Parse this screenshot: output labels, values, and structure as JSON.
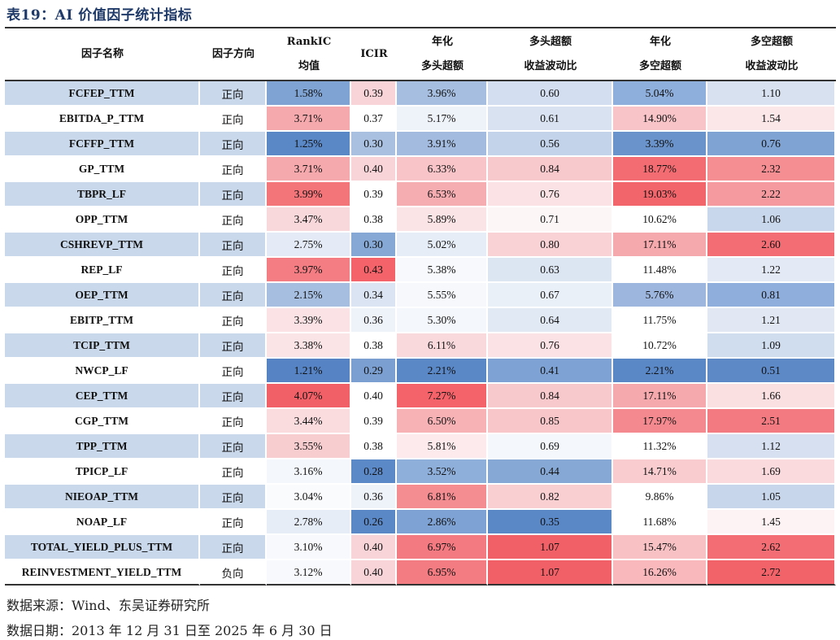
{
  "title": "表19：AI 价值因子统计指标",
  "headers": {
    "factor": "因子名称",
    "direction": "因子方向",
    "rankic_1": "RankIC",
    "rankic_2": "均值",
    "icir": "ICIR",
    "long_ann_1": "年化",
    "long_ann_2": "多头超额",
    "long_ratio_1": "多头超额",
    "long_ratio_2": "收益波动比",
    "ls_ann_1": "年化",
    "ls_ann_2": "多空超额",
    "ls_ratio_1": "多空超额",
    "ls_ratio_2": "收益波动比"
  },
  "rows": [
    {
      "name": "FCFEP_TTM",
      "dir": "正向",
      "rankic": "1.58%",
      "icir": "0.39",
      "long_ann": "3.96%",
      "long_ratio": "0.60",
      "ls_ann": "5.04%",
      "ls_ratio": "1.10",
      "colors": {
        "rankic": "#7fa3d3",
        "icir": "#f8d3d7",
        "long_ann": "#a6bee0",
        "long_ratio": "#d3def0",
        "ls_ann": "#8eaedb",
        "ls_ratio": "#d7e1f0"
      }
    },
    {
      "name": "EBITDA_P_TTM",
      "dir": "正向",
      "rankic": "3.71%",
      "icir": "0.37",
      "long_ann": "5.17%",
      "long_ratio": "0.61",
      "ls_ann": "14.90%",
      "ls_ratio": "1.54",
      "colors": {
        "rankic": "#f6a9ad",
        "icir": "#ffffff",
        "long_ann": "#eef2f9",
        "long_ratio": "#d8e2f1",
        "ls_ann": "#f8c4c8",
        "ls_ratio": "#fbe6e8"
      }
    },
    {
      "name": "FCFFP_TTM",
      "dir": "正向",
      "rankic": "1.25%",
      "icir": "0.30",
      "long_ann": "3.91%",
      "long_ratio": "0.56",
      "ls_ann": "3.39%",
      "ls_ratio": "0.76",
      "colors": {
        "rankic": "#5a87c6",
        "icir": "#a9c0e1",
        "long_ann": "#a3bbdf",
        "long_ratio": "#c3d3ea",
        "ls_ann": "#6a93cb",
        "ls_ratio": "#7fa3d3"
      }
    },
    {
      "name": "GP_TTM",
      "dir": "正向",
      "rankic": "3.71%",
      "icir": "0.40",
      "long_ann": "6.33%",
      "long_ratio": "0.84",
      "ls_ann": "18.77%",
      "ls_ratio": "2.32",
      "colors": {
        "rankic": "#f6a9ad",
        "icir": "#f8d3d7",
        "long_ann": "#f8c4c8",
        "long_ratio": "#f8c9cc",
        "ls_ann": "#f36c72",
        "ls_ratio": "#f48e93"
      }
    },
    {
      "name": "TBPR_LF",
      "dir": "正向",
      "rankic": "3.99%",
      "icir": "0.39",
      "long_ann": "6.53%",
      "long_ratio": "0.76",
      "ls_ann": "19.03%",
      "ls_ratio": "2.22",
      "colors": {
        "rankic": "#f37479",
        "icir": "#ffffff",
        "long_ann": "#f6adb1",
        "long_ratio": "#fbe2e4",
        "ls_ann": "#f2656b",
        "ls_ratio": "#f59a9f"
      }
    },
    {
      "name": "OPP_TTM",
      "dir": "正向",
      "rankic": "3.47%",
      "icir": "0.38",
      "long_ann": "5.89%",
      "long_ratio": "0.71",
      "ls_ann": "10.62%",
      "ls_ratio": "1.06",
      "colors": {
        "rankic": "#f9d8db",
        "icir": "#ffffff",
        "long_ann": "#fbe4e6",
        "long_ratio": "#fdf6f7",
        "ls_ann": "#ffffff",
        "ls_ratio": "#c9d7ec"
      }
    },
    {
      "name": "CSHREVP_TTM",
      "dir": "正向",
      "rankic": "2.75%",
      "icir": "0.30",
      "long_ann": "5.02%",
      "long_ratio": "0.80",
      "ls_ann": "17.11%",
      "ls_ratio": "2.60",
      "colors": {
        "rankic": "#e4ebf6",
        "icir": "#86a8d5",
        "long_ann": "#e6edf7",
        "long_ratio": "#f9d2d5",
        "ls_ann": "#f6a9ad",
        "ls_ratio": "#f36e74"
      }
    },
    {
      "name": "REP_LF",
      "dir": "正向",
      "rankic": "3.97%",
      "icir": "0.43",
      "long_ann": "5.38%",
      "long_ratio": "0.63",
      "ls_ann": "11.48%",
      "ls_ratio": "1.22",
      "colors": {
        "rankic": "#f37d82",
        "icir": "#f36369",
        "long_ann": "#f7f9fc",
        "long_ratio": "#dce5f2",
        "ls_ann": "#ffffff",
        "ls_ratio": "#e3eaf5"
      }
    },
    {
      "name": "OEP_TTM",
      "dir": "正向",
      "rankic": "2.15%",
      "icir": "0.34",
      "long_ann": "5.55%",
      "long_ratio": "0.67",
      "ls_ann": "5.76%",
      "ls_ratio": "0.81",
      "colors": {
        "rankic": "#a6bee0",
        "icir": "#dbe4f2",
        "long_ann": "#f6f8fc",
        "long_ratio": "#eaf0f8",
        "ls_ann": "#9db6dd",
        "ls_ratio": "#8faedb"
      }
    },
    {
      "name": "EBITP_TTM",
      "dir": "正向",
      "rankic": "3.39%",
      "icir": "0.36",
      "long_ann": "5.30%",
      "long_ratio": "0.64",
      "ls_ann": "11.75%",
      "ls_ratio": "1.21",
      "colors": {
        "rankic": "#fbe3e5",
        "icir": "#eef2f9",
        "long_ann": "#f4f7fb",
        "long_ratio": "#e1e9f4",
        "ls_ann": "#ffffff",
        "ls_ratio": "#e1e8f4"
      }
    },
    {
      "name": "TCIP_TTM",
      "dir": "正向",
      "rankic": "3.38%",
      "icir": "0.38",
      "long_ann": "6.11%",
      "long_ratio": "0.76",
      "ls_ann": "10.72%",
      "ls_ratio": "1.09",
      "colors": {
        "rankic": "#fbe4e6",
        "icir": "#ffffff",
        "long_ann": "#fad9dc",
        "long_ratio": "#fbe2e4",
        "ls_ann": "#ffffff",
        "ls_ratio": "#d0ddef"
      }
    },
    {
      "name": "NWCP_LF",
      "dir": "正向",
      "rankic": "1.21%",
      "icir": "0.29",
      "long_ann": "2.21%",
      "long_ratio": "0.41",
      "ls_ann": "2.21%",
      "ls_ratio": "0.51",
      "colors": {
        "rankic": "#5583c4",
        "icir": "#7c9fd1",
        "long_ann": "#5a87c6",
        "long_ratio": "#7ea2d3",
        "ls_ann": "#5a87c6",
        "ls_ratio": "#5e89c7"
      }
    },
    {
      "name": "CEP_TTM",
      "dir": "正向",
      "rankic": "4.07%",
      "icir": "0.40",
      "long_ann": "7.27%",
      "long_ratio": "0.84",
      "ls_ann": "17.11%",
      "ls_ratio": "1.66",
      "colors": {
        "rankic": "#f26067",
        "icir": "#ffffff",
        "long_ann": "#f36369",
        "long_ratio": "#f8c9cc",
        "ls_ann": "#f6a9ad",
        "ls_ratio": "#fbe0e2"
      }
    },
    {
      "name": "CGP_TTM",
      "dir": "正向",
      "rankic": "3.44%",
      "icir": "0.39",
      "long_ann": "6.50%",
      "long_ratio": "0.85",
      "ls_ann": "17.97%",
      "ls_ratio": "2.51",
      "colors": {
        "rankic": "#fadbde",
        "icir": "#ffffff",
        "long_ann": "#f7b2b6",
        "long_ratio": "#f8c6c9",
        "ls_ann": "#f48a8f",
        "ls_ratio": "#f37a80"
      }
    },
    {
      "name": "TPP_TTM",
      "dir": "正向",
      "rankic": "3.55%",
      "icir": "0.38",
      "long_ann": "5.81%",
      "long_ratio": "0.69",
      "ls_ann": "11.32%",
      "ls_ratio": "1.12",
      "colors": {
        "rankic": "#f8cdd0",
        "icir": "#ffffff",
        "long_ann": "#fceaec",
        "long_ratio": "#f4f7fb",
        "ls_ann": "#ffffff",
        "ls_ratio": "#d6e0f0"
      }
    },
    {
      "name": "TPICP_LF",
      "dir": "正向",
      "rankic": "3.16%",
      "icir": "0.28",
      "long_ann": "3.52%",
      "long_ratio": "0.44",
      "ls_ann": "14.71%",
      "ls_ratio": "1.69",
      "colors": {
        "rankic": "#f4f7fb",
        "icir": "#5b88c6",
        "long_ann": "#8fafdb",
        "long_ratio": "#86a8d5",
        "ls_ann": "#f9cdd0",
        "ls_ratio": "#fadadd"
      }
    },
    {
      "name": "NIEOAP_TTM",
      "dir": "正向",
      "rankic": "3.04%",
      "icir": "0.36",
      "long_ann": "6.81%",
      "long_ratio": "0.82",
      "ls_ann": "9.86%",
      "ls_ratio": "1.05",
      "colors": {
        "rankic": "#fafbfd",
        "icir": "#eef2f9",
        "long_ann": "#f48d92",
        "long_ratio": "#f9cfd2",
        "ls_ann": "#ffffff",
        "ls_ratio": "#c8d6eb"
      }
    },
    {
      "name": "NOAP_LF",
      "dir": "正向",
      "rankic": "2.78%",
      "icir": "0.26",
      "long_ann": "2.86%",
      "long_ratio": "0.35",
      "ls_ann": "11.68%",
      "ls_ratio": "1.45",
      "colors": {
        "rankic": "#e6edf7",
        "icir": "#5a87c6",
        "long_ann": "#7ea2d3",
        "long_ratio": "#5a87c6",
        "ls_ann": "#ffffff",
        "ls_ratio": "#fdf3f4"
      }
    },
    {
      "name": "TOTAL_YIELD_PLUS_TTM",
      "dir": "正向",
      "rankic": "3.10%",
      "icir": "0.40",
      "long_ann": "6.97%",
      "long_ratio": "1.07",
      "ls_ann": "15.47%",
      "ls_ratio": "2.62",
      "colors": {
        "rankic": "#f8f9fc",
        "icir": "#f8d3d7",
        "long_ann": "#f37a80",
        "long_ratio": "#f26067",
        "ls_ann": "#f8c2c5",
        "ls_ratio": "#f36e74"
      }
    },
    {
      "name": "REINVESTMENT_YIELD_TTM",
      "dir": "负向",
      "rankic": "3.12%",
      "icir": "0.40",
      "long_ann": "6.95%",
      "long_ratio": "1.07",
      "ls_ann": "16.26%",
      "ls_ratio": "2.72",
      "colors": {
        "rankic": "#f8f9fc",
        "icir": "#f8d3d7",
        "long_ann": "#f37c82",
        "long_ratio": "#f26067",
        "ls_ann": "#f8b8bc",
        "ls_ratio": "#f26369"
      }
    }
  ],
  "source_line": "数据来源：Wind、东吴证券研究所",
  "date_line": "数据日期：2013 年 12 月 31 日至 2025 年 6 月 30 日"
}
